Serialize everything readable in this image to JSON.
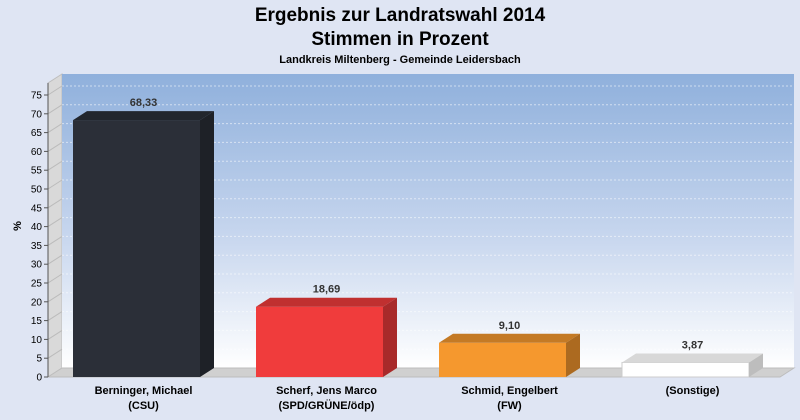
{
  "chart_data": {
    "type": "bar",
    "title": "Ergebnis zur Landratswahl 2014",
    "title_line2": "Stimmen in Prozent",
    "subtitle": "Landkreis Miltenberg - Gemeinde Leidersbach",
    "ylabel": "%",
    "ylim": [
      0,
      75
    ],
    "yticks": [
      0,
      5,
      10,
      15,
      20,
      25,
      30,
      35,
      40,
      45,
      50,
      55,
      60,
      65,
      70,
      75
    ],
    "categories": [
      [
        "Berninger, Michael",
        "(CSU)"
      ],
      [
        "Scherf, Jens Marco",
        "(SPD/GRÜNE/ödp)"
      ],
      [
        "Schmid, Engelbert",
        "(FW)"
      ],
      [
        "(Sonstige)",
        ""
      ]
    ],
    "values": [
      68.33,
      18.69,
      9.1,
      3.87
    ],
    "value_labels": [
      "68,33",
      "18,69",
      "9,10",
      "3,87"
    ],
    "colors": [
      "#2b2f38",
      "#f03c3c",
      "#f5982e",
      "#ffffff"
    ],
    "grid": true,
    "style": "3d"
  }
}
